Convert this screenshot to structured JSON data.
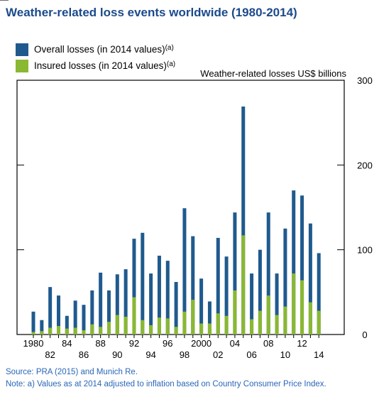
{
  "title": "Weather-related loss events worldwide (1980-2014)",
  "colors": {
    "overall": "#1f5a8e",
    "insured": "#8ab832",
    "title": "#1b4a8c",
    "footer": "#2a66b8"
  },
  "legend": [
    {
      "label": "Overall losses (in 2014 values)",
      "sup": "(a)"
    },
    {
      "label": "Insured losses (in 2014 values)",
      "sup": "(a)"
    }
  ],
  "source": "Source: PRA (2015) and Munich Re.",
  "note": "Note: a) Values as at 2014 adjusted to inflation based on Country Consumer Price Index.",
  "chart_data": {
    "type": "bar",
    "ylabel": "Weather-related losses US$ billions",
    "ylim": [
      0,
      300
    ],
    "yticks": [
      0,
      100,
      200,
      300
    ],
    "grid": false,
    "legend_position": "top-left",
    "categories": [
      "1980",
      "1981",
      "1982",
      "1983",
      "1984",
      "1985",
      "1986",
      "1987",
      "1988",
      "1989",
      "1990",
      "1991",
      "1992",
      "1993",
      "1994",
      "1995",
      "1996",
      "1997",
      "1998",
      "1999",
      "2000",
      "2001",
      "2002",
      "2003",
      "2004",
      "2005",
      "2006",
      "2007",
      "2008",
      "2009",
      "2010",
      "2011",
      "2012",
      "2013",
      "2014"
    ],
    "xtick_labels_upper": [
      {
        "index": 0,
        "text": "1980"
      },
      {
        "index": 4,
        "text": "84"
      },
      {
        "index": 8,
        "text": "88"
      },
      {
        "index": 12,
        "text": "92"
      },
      {
        "index": 16,
        "text": "96"
      },
      {
        "index": 20,
        "text": "2000"
      },
      {
        "index": 24,
        "text": "04"
      },
      {
        "index": 28,
        "text": "08"
      },
      {
        "index": 32,
        "text": "12"
      }
    ],
    "xtick_labels_lower": [
      {
        "index": 2,
        "text": "82"
      },
      {
        "index": 6,
        "text": "86"
      },
      {
        "index": 10,
        "text": "90"
      },
      {
        "index": 14,
        "text": "94"
      },
      {
        "index": 18,
        "text": "98"
      },
      {
        "index": 22,
        "text": "02"
      },
      {
        "index": 26,
        "text": "06"
      },
      {
        "index": 30,
        "text": "10"
      },
      {
        "index": 34,
        "text": "14"
      }
    ],
    "series": [
      {
        "name": "Overall losses (in 2014 values)",
        "values": [
          27,
          17,
          56,
          46,
          22,
          40,
          35,
          52,
          73,
          52,
          71,
          77,
          113,
          120,
          72,
          93,
          87,
          62,
          149,
          116,
          66,
          39,
          114,
          92,
          144,
          269,
          72,
          100,
          144,
          72,
          125,
          170,
          164,
          131,
          96
        ]
      },
      {
        "name": "Insured losses (in 2014 values)",
        "values": [
          3,
          4,
          8,
          10,
          7,
          8,
          5,
          12,
          9,
          15,
          23,
          21,
          44,
          17,
          11,
          20,
          19,
          9,
          27,
          41,
          13,
          13,
          25,
          22,
          52,
          117,
          18,
          28,
          46,
          23,
          33,
          72,
          64,
          38,
          28
        ]
      }
    ]
  }
}
